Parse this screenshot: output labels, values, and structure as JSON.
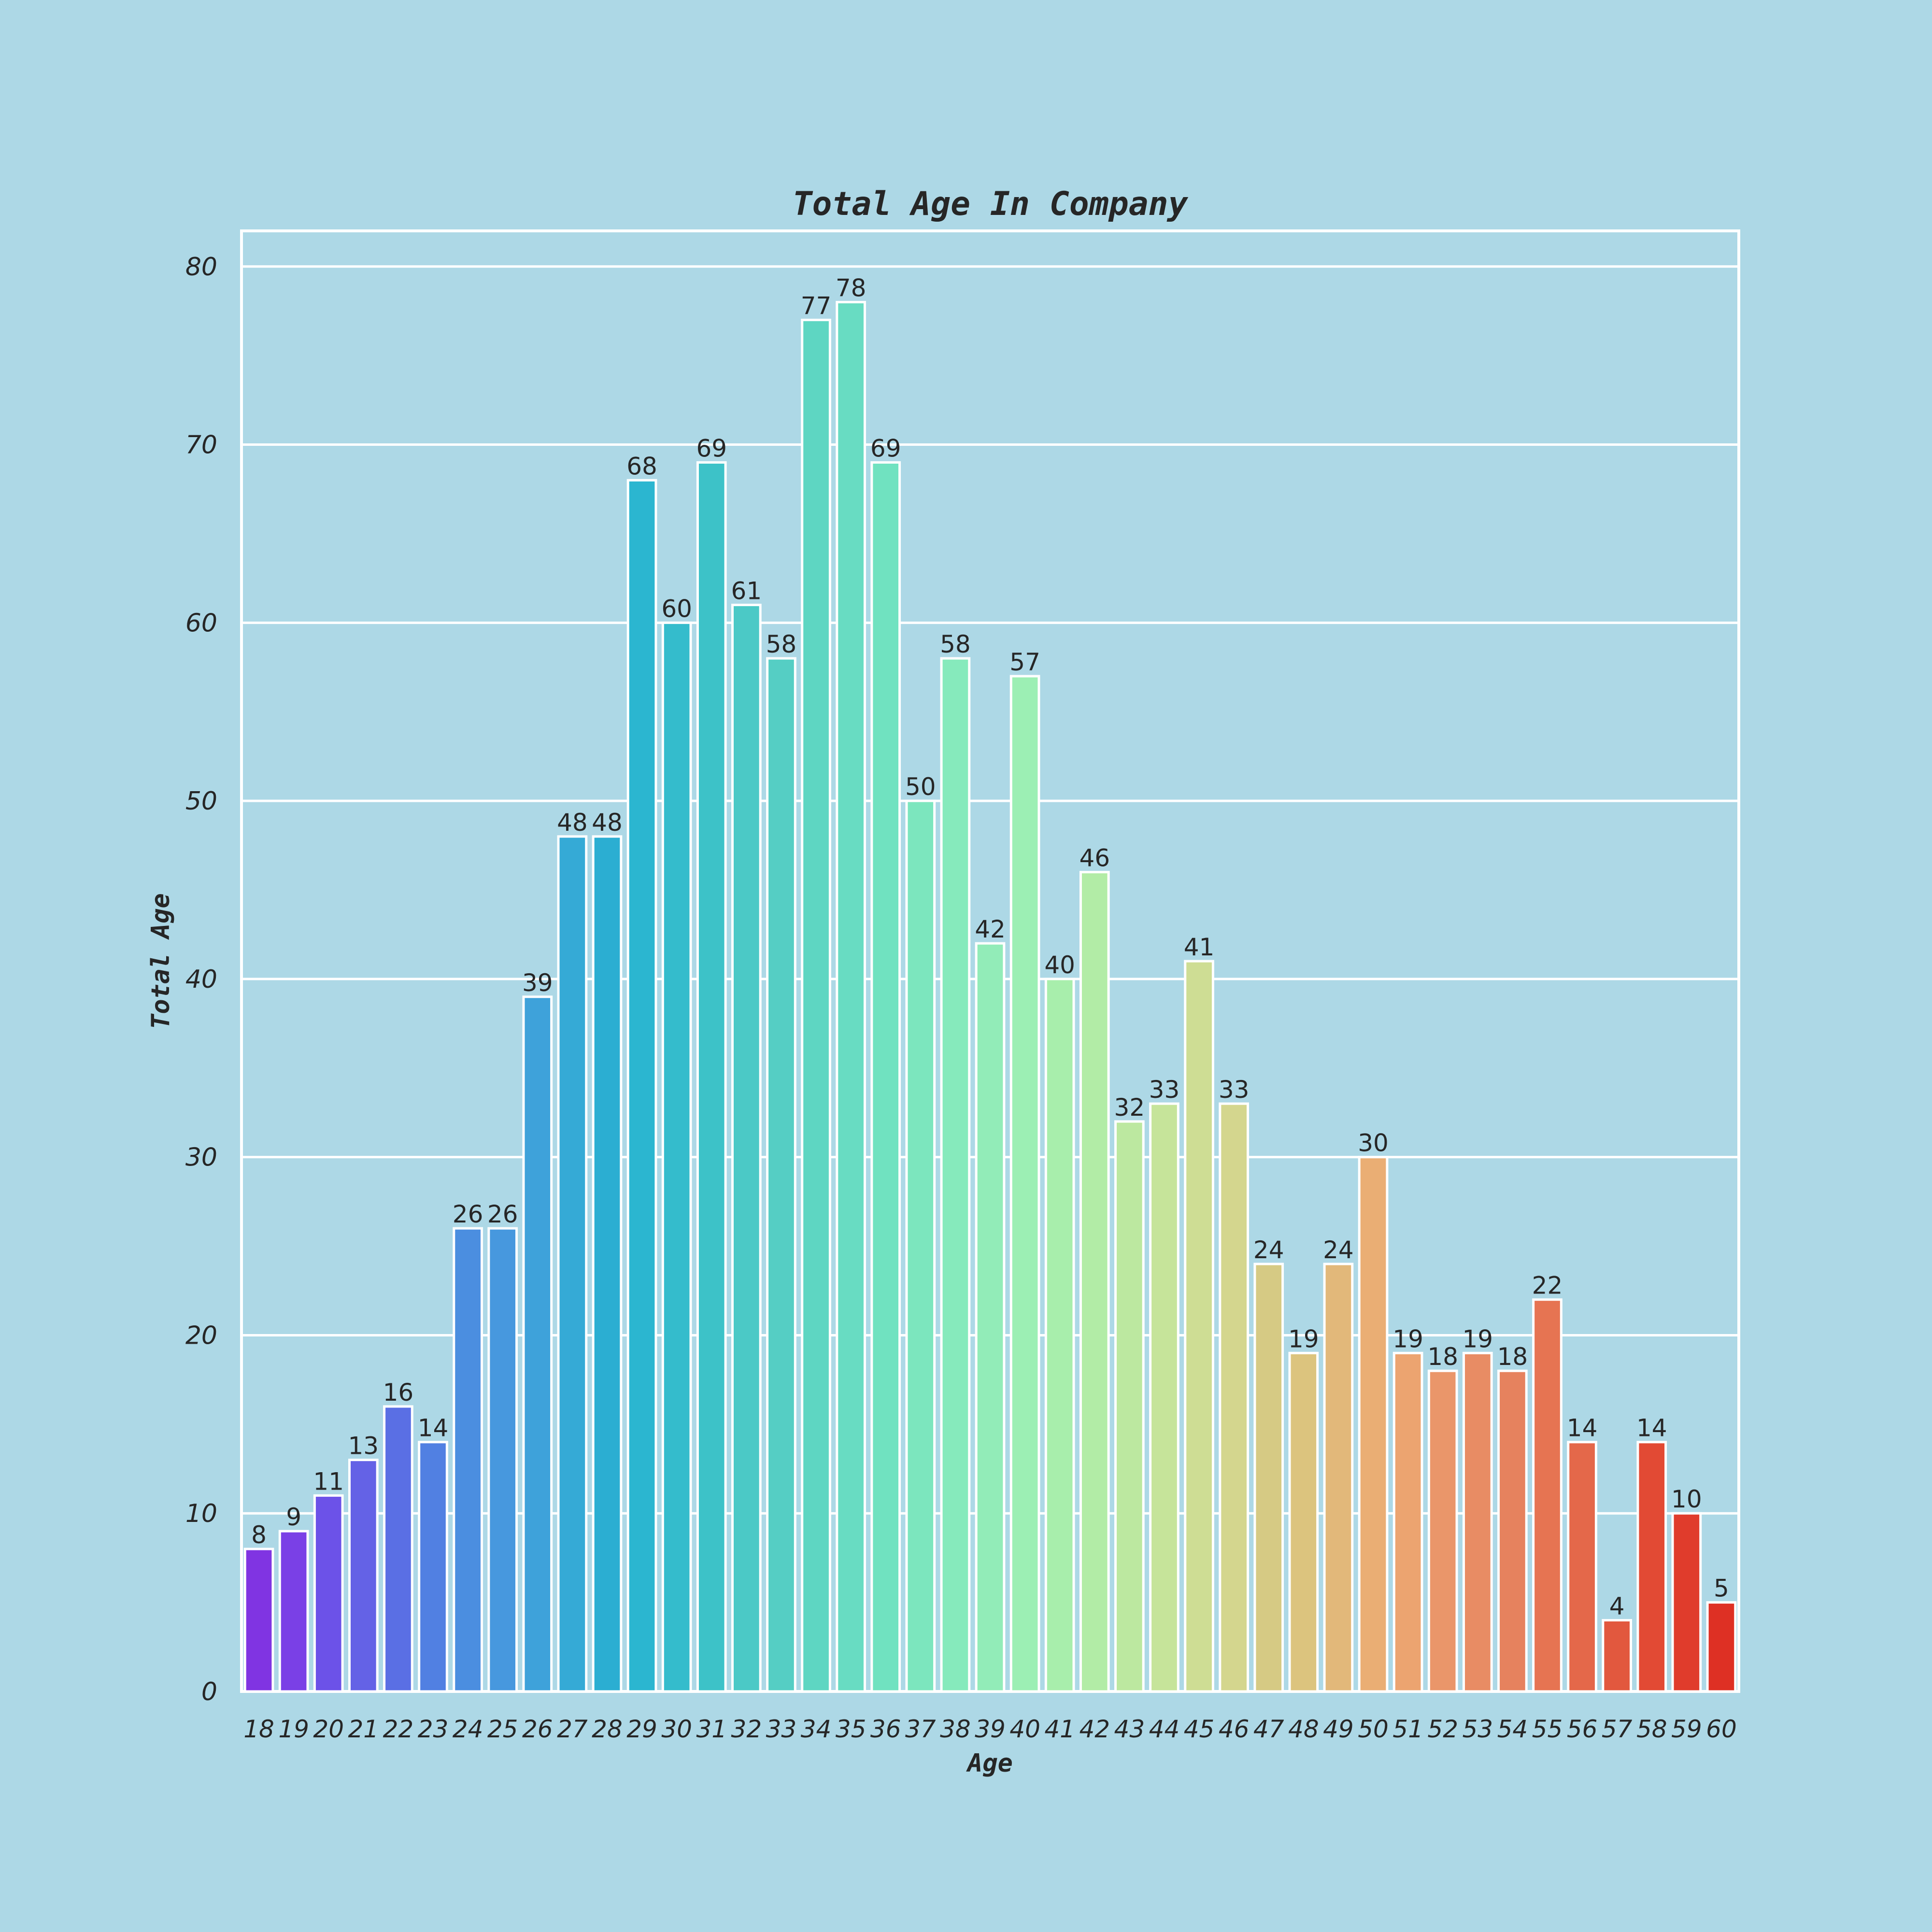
{
  "chart_data": {
    "type": "bar",
    "title": "Total Age In Company",
    "xlabel": "Age",
    "ylabel": "Total Age",
    "ylim": [
      0,
      82
    ],
    "yticks": [
      0,
      10,
      20,
      30,
      40,
      50,
      60,
      70,
      80
    ],
    "grid": true,
    "categories": [
      "18",
      "19",
      "20",
      "21",
      "22",
      "23",
      "24",
      "25",
      "26",
      "27",
      "28",
      "29",
      "30",
      "31",
      "32",
      "33",
      "34",
      "35",
      "36",
      "37",
      "38",
      "39",
      "40",
      "41",
      "42",
      "43",
      "44",
      "45",
      "46",
      "47",
      "48",
      "49",
      "50",
      "51",
      "52",
      "53",
      "54",
      "55",
      "56",
      "57",
      "58",
      "59",
      "60"
    ],
    "values": [
      8,
      9,
      11,
      13,
      16,
      14,
      26,
      26,
      39,
      48,
      48,
      68,
      60,
      69,
      61,
      58,
      77,
      78,
      69,
      50,
      58,
      42,
      57,
      40,
      46,
      32,
      33,
      41,
      33,
      24,
      19,
      24,
      30,
      19,
      18,
      19,
      18,
      22,
      14,
      4,
      14,
      10,
      5
    ],
    "colors": [
      "#8034e2",
      "#7a40e6",
      "#6c52e8",
      "#6462e6",
      "#5a6fe4",
      "#5180e2",
      "#4b8ee0",
      "#4798de",
      "#3ea2da",
      "#35aad6",
      "#2baed2",
      "#2bb6d0",
      "#34bccc",
      "#3dc2c8",
      "#4bc9c6",
      "#55cec4",
      "#5ed6c2",
      "#68dcc2",
      "#70e2c0",
      "#7ce6be",
      "#86eabc",
      "#92ecb8",
      "#9cefb4",
      "#a8eeac",
      "#b2eca6",
      "#bce8a0",
      "#c6e49a",
      "#cedd94",
      "#d4d68e",
      "#d6ca84",
      "#dcc47e",
      "#e2b87a",
      "#eaae74",
      "#eca470",
      "#ea966a",
      "#e88c64",
      "#e6825e",
      "#e67452",
      "#e4684a",
      "#e2583e",
      "#e24a34",
      "#e03c2c",
      "#de3024"
    ]
  }
}
